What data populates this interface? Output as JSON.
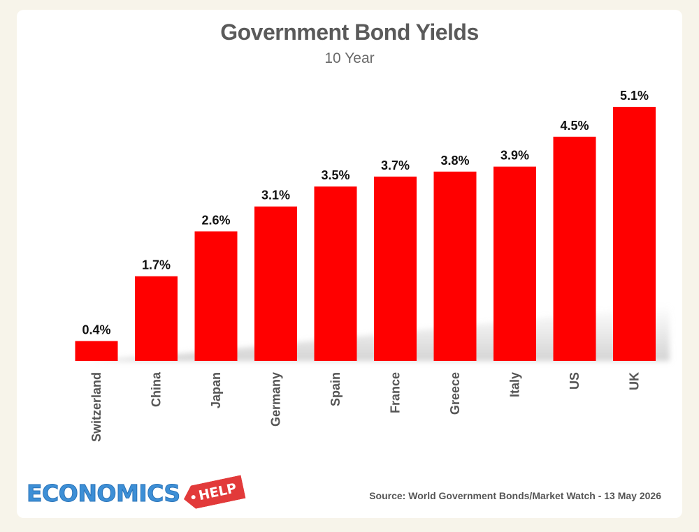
{
  "chart_data": {
    "type": "bar",
    "title": "Government Bond Yields",
    "subtitle": "10 Year",
    "xlabel": "",
    "ylabel": "",
    "categories": [
      "Switzerland",
      "China",
      "Japan",
      "Germany",
      "Spain",
      "France",
      "Greece",
      "Italy",
      "US",
      "UK"
    ],
    "values": [
      0.4,
      1.7,
      2.6,
      3.1,
      3.5,
      3.7,
      3.8,
      3.9,
      4.5,
      5.1
    ],
    "data_labels": [
      "0.4%",
      "1.7%",
      "2.6%",
      "3.1%",
      "3.5%",
      "3.7%",
      "3.8%",
      "3.9%",
      "4.5%",
      "5.1%"
    ],
    "unit": "%",
    "ylim": [
      0,
      5.1
    ],
    "grid": false,
    "legend": "none",
    "bar_color": "#ff0000"
  },
  "footer": {
    "logo_word": "ECONOMICS",
    "logo_tag": "HELP",
    "source": "Source: World Government Bonds/Market Watch - 13 May 2026"
  },
  "colors": {
    "title": "#5a5a5a",
    "logo_blue": "#3d8fd6",
    "logo_red": "#e23a3a"
  }
}
